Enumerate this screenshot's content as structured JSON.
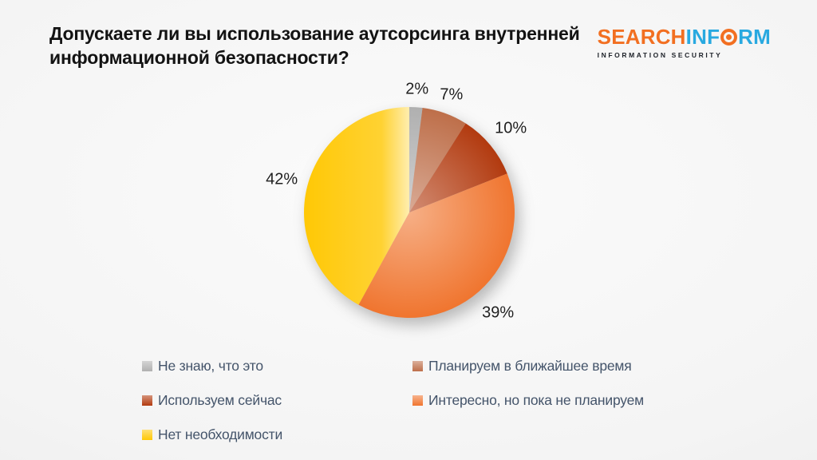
{
  "slide": {
    "title": "Допускаете ли вы использование аутсорсинга внутренней информационной безопасности?"
  },
  "logo": {
    "brand_part1": "SEARCH",
    "brand_part2": "INF",
    "brand_part3": "RM",
    "tagline": "INFORMATION SECURITY",
    "orange": "#F26F21",
    "blue": "#29A9E0"
  },
  "chart_data": {
    "type": "pie",
    "title": "Допускаете ли вы использование аутсорсинга внутренней информационной безопасности?",
    "categories": [
      "Не знаю, что это",
      "Планируем в ближайшее время",
      "Используем сейчас",
      "Интересно, но пока не планируем",
      "Нет необходимости"
    ],
    "values": [
      2,
      7,
      10,
      39,
      42
    ],
    "labels": [
      "2%",
      "7%",
      "10%",
      "39%",
      "42%"
    ],
    "colors": [
      "#B0B0B0",
      "#BE6F4A",
      "#B23A0F",
      "#F0752F",
      "#FFC805"
    ],
    "start_angle_deg": 0,
    "direction": "clockwise",
    "legend_position": "bottom",
    "label_position": "outside"
  }
}
